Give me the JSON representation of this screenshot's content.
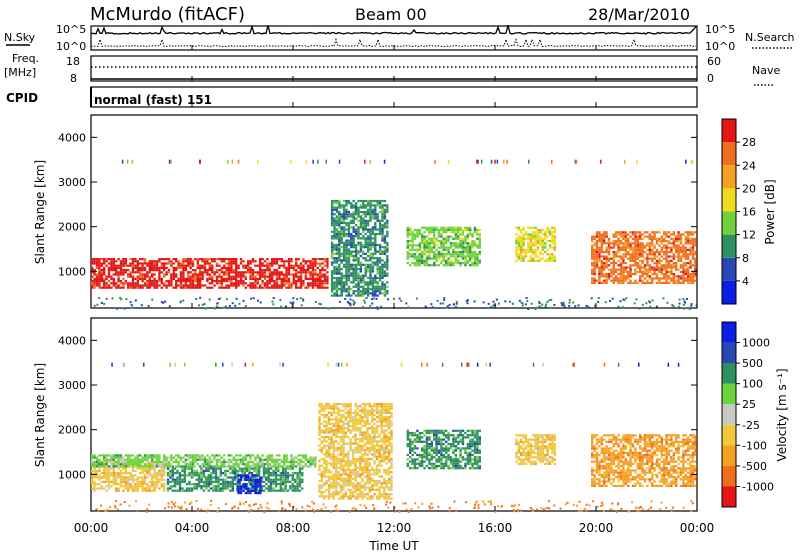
{
  "header": {
    "station": "McMurdo (fitACF)",
    "beam": "Beam 00",
    "date": "28/Mar/2010"
  },
  "status_panels": {
    "nsky_label": "N.Sky",
    "nsearch_label": "N.Search",
    "noise_ticks_left": [
      "10^5",
      "10^0"
    ],
    "noise_ticks_right": [
      "10^5",
      "10^0"
    ],
    "freq_label_line1": "Freq.",
    "freq_label_line2": "[MHz]",
    "freq_ticks": [
      "18",
      "8"
    ],
    "nave_label": "Nave",
    "nave_ticks": [
      "60",
      "0"
    ],
    "cpid_label": "CPID",
    "cpid_value": "normal (fast) 151"
  },
  "chart_data": [
    {
      "type": "heatmap",
      "parameter": "Power",
      "ylabel": "Slant Range [km]",
      "yticks": [
        "1000",
        "2000",
        "3000",
        "4000"
      ],
      "ylim": [
        180,
        4500
      ],
      "xlim_hours": [
        0,
        24
      ],
      "colorbar_label": "Power [dB]",
      "colorbar_ticks": [
        "4",
        "8",
        "12",
        "16",
        "20",
        "24",
        "28"
      ],
      "colorbar_colors": [
        "#0a1ee6",
        "#2846b4",
        "#2f8f5f",
        "#6ed23c",
        "#f0dc1e",
        "#f5a023",
        "#f06e1e",
        "#e61414"
      ],
      "echo_regions": [
        {
          "t0": 0.0,
          "t1": 9.5,
          "r0": 600,
          "r1": 1300,
          "level": 28
        },
        {
          "t0": 9.5,
          "t1": 11.8,
          "r0": 400,
          "r1": 2600,
          "level": 8
        },
        {
          "t0": 12.5,
          "t1": 15.5,
          "r0": 1100,
          "r1": 2000,
          "level": 12
        },
        {
          "t0": 16.8,
          "t1": 18.5,
          "r0": 1200,
          "r1": 2000,
          "level": 16
        },
        {
          "t0": 19.8,
          "t1": 24.0,
          "r0": 700,
          "r1": 1900,
          "level": 24
        }
      ]
    },
    {
      "type": "heatmap",
      "parameter": "Velocity",
      "ylabel": "Slant Range [km]",
      "yticks": [
        "1000",
        "2000",
        "3000",
        "4000"
      ],
      "ylim": [
        180,
        4500
      ],
      "xlim_hours": [
        0,
        24
      ],
      "xticks": [
        "00:00",
        "04:00",
        "08:00",
        "12:00",
        "16:00",
        "20:00",
        "00:00"
      ],
      "xlabel": "Time UT",
      "colorbar_label": "Velocity [m s⁻¹]",
      "colorbar_ticks": [
        "-1000",
        "-500",
        "-100",
        "-25",
        "25",
        "100",
        "500",
        "1000"
      ],
      "colorbar_colors": [
        "#e61414",
        "#f06e1e",
        "#f5a023",
        "#f0c83c",
        "#c8c8c8",
        "#6ed23c",
        "#2f8f5f",
        "#2846b4",
        "#0a1ee6"
      ],
      "echo_regions": [
        {
          "t0": 0.0,
          "t1": 3.0,
          "r0": 600,
          "r1": 1300,
          "level": -100
        },
        {
          "t0": 3.0,
          "t1": 8.5,
          "r0": 600,
          "r1": 1200,
          "level": 100
        },
        {
          "t0": 5.8,
          "t1": 6.8,
          "r0": 550,
          "r1": 1000,
          "level": 1000
        },
        {
          "t0": 0.0,
          "t1": 9.0,
          "r0": 1150,
          "r1": 1450,
          "level": 25
        },
        {
          "t0": 9.0,
          "t1": 12.0,
          "r0": 400,
          "r1": 2600,
          "level": -100
        },
        {
          "t0": 12.5,
          "t1": 15.5,
          "r0": 1100,
          "r1": 2000,
          "level": 100
        },
        {
          "t0": 16.8,
          "t1": 18.5,
          "r0": 1200,
          "r1": 1900,
          "level": -100
        },
        {
          "t0": 19.8,
          "t1": 24.0,
          "r0": 700,
          "r1": 1900,
          "level": -500
        }
      ]
    }
  ]
}
